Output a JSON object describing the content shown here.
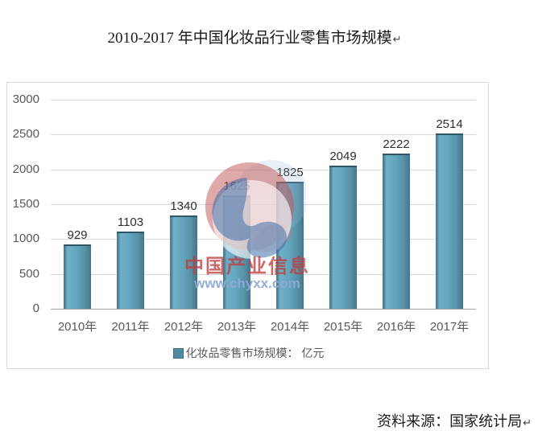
{
  "title": {
    "text": "2010-2017 年中国化妆品行业零售市场规模",
    "paragraph_mark": "↵"
  },
  "chart_data": {
    "type": "bar",
    "categories": [
      "2010年",
      "2011年",
      "2012年",
      "2013年",
      "2014年",
      "2015年",
      "2016年",
      "2017年"
    ],
    "values": [
      929,
      1103,
      1340,
      1625,
      1825,
      2049,
      2222,
      2514
    ],
    "title": "2010-2017 年中国化妆品行业零售市场规模",
    "legend": "化妆品零售市场规模： 亿元",
    "xlabel": "",
    "ylabel": "",
    "ylim": [
      0,
      3000
    ],
    "ytick_step": 500,
    "grid": true,
    "legend_position": "bottom",
    "bar_color": "#5b9cb5"
  },
  "watermark": {
    "line1": "中国产业信息",
    "line2": "www.chyxx.com",
    "logo_colors": {
      "red": "#c05a5a",
      "blue": "#3f6fa8"
    }
  },
  "source": {
    "text": "资料来源：国家统计局",
    "paragraph_mark": "↵"
  }
}
